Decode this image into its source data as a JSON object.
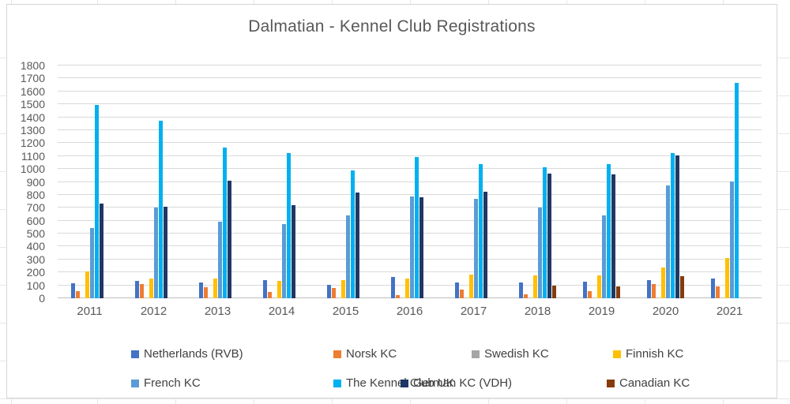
{
  "chart_data": {
    "type": "bar",
    "title": "Dalmatian - Kennel Club Registrations",
    "categories": [
      "2011",
      "2012",
      "2013",
      "2014",
      "2015",
      "2016",
      "2017",
      "2018",
      "2019",
      "2020",
      "2021"
    ],
    "series": [
      {
        "name": "Netherlands (RVB)",
        "color": "#4472C4",
        "values": [
          115,
          135,
          120,
          140,
          105,
          165,
          120,
          120,
          130,
          140,
          155
        ]
      },
      {
        "name": "Norsk KC",
        "color": "#ED7D31",
        "values": [
          55,
          110,
          85,
          50,
          80,
          25,
          65,
          30,
          55,
          110,
          90
        ]
      },
      {
        "name": "Swedish KC",
        "color": "#A5A5A5",
        "values": [
          0,
          0,
          0,
          0,
          0,
          0,
          0,
          0,
          0,
          0,
          0
        ]
      },
      {
        "name": "Finnish KC",
        "color": "#FFC000",
        "values": [
          205,
          150,
          150,
          135,
          140,
          150,
          185,
          180,
          180,
          240,
          310
        ]
      },
      {
        "name": "French KC",
        "color": "#5B9BD5",
        "values": [
          545,
          700,
          595,
          575,
          640,
          790,
          770,
          700,
          640,
          875,
          905
        ]
      },
      {
        "name": "The Kennel Club UK",
        "color": "#00B0F0",
        "values": [
          1495,
          1370,
          1165,
          1125,
          990,
          1095,
          1040,
          1010,
          1040,
          1125,
          1665
        ]
      },
      {
        "name": "German KC (VDH)",
        "color": "#1F3864",
        "values": [
          730,
          705,
          910,
          720,
          820,
          780,
          825,
          965,
          960,
          1105,
          0
        ]
      },
      {
        "name": "Canadian KC",
        "color": "#843C0C",
        "values": [
          0,
          0,
          0,
          0,
          0,
          0,
          0,
          100,
          90,
          170,
          0
        ]
      }
    ],
    "ylim": [
      0,
      1800
    ],
    "ytick_step": 100,
    "grid": true,
    "legend_position": "bottom"
  }
}
